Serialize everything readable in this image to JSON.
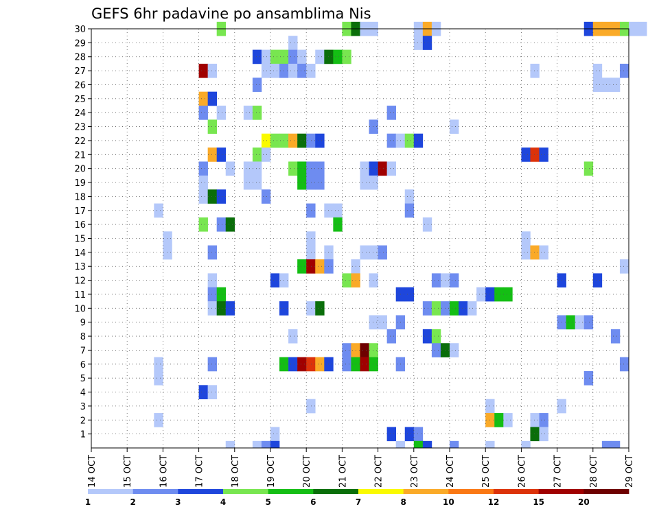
{
  "chart_data": {
    "type": "heatmap",
    "title": "GEFS 6hr padavine po ansamblima Nis",
    "x_tick_labels": [
      "14 OCT",
      "15 OCT",
      "16 OCT",
      "17 OCT",
      "18 OCT",
      "19 OCT",
      "20 OCT",
      "21 OCT",
      "22 OCT",
      "23 OCT",
      "24 OCT",
      "25 OCT",
      "26 OCT",
      "27 OCT",
      "28 OCT",
      "29 OCT"
    ],
    "y_tick_labels": [
      "1",
      "2",
      "3",
      "4",
      "5",
      "6",
      "7",
      "8",
      "9",
      "10",
      "11",
      "12",
      "13",
      "14",
      "15",
      "16",
      "17",
      "18",
      "19",
      "20",
      "21",
      "22",
      "23",
      "24",
      "25",
      "26",
      "27",
      "28",
      "29",
      "30"
    ],
    "ylim": [
      0,
      30
    ],
    "grid": true,
    "colorbar": {
      "labels": [
        "1",
        "2",
        "3",
        "4",
        "5",
        "6",
        "7",
        "8",
        "10",
        "12",
        "15",
        "20"
      ],
      "colors": [
        "#b4c8fa",
        "#6e8cf0",
        "#1e46dc",
        "#78e650",
        "#14be14",
        "#0a6e0a",
        "#fafa00",
        "#faaa28",
        "#fa7814",
        "#dc320a",
        "#a00000",
        "#6e0000"
      ]
    },
    "cells": [
      {
        "d": "17 OCT 12Z",
        "m": 30,
        "v": 4
      },
      {
        "d": "21 OCT 00Z",
        "m": 30,
        "v": 4
      },
      {
        "d": "21 OCT 06Z",
        "m": 30,
        "v": 6
      },
      {
        "d": "21 OCT 12Z",
        "m": 30,
        "v": 1
      },
      {
        "d": "21 OCT 18Z",
        "m": 30,
        "v": 1
      },
      {
        "d": "23 OCT 00Z",
        "m": 30,
        "v": 1
      },
      {
        "d": "23 OCT 06Z",
        "m": 30,
        "v": 8
      },
      {
        "d": "23 OCT 12Z",
        "m": 30,
        "v": 1
      },
      {
        "d": "27 OCT 18Z",
        "m": 30,
        "v": 3
      },
      {
        "d": "28 OCT 00Z",
        "m": 30,
        "v": 8
      },
      {
        "d": "28 OCT 06Z",
        "m": 30,
        "v": 8
      },
      {
        "d": "28 OCT 12Z",
        "m": 30,
        "v": 8
      },
      {
        "d": "28 OCT 18Z",
        "m": 30,
        "v": 4
      },
      {
        "d": "29 OCT 00Z",
        "m": 30,
        "v": 1
      },
      {
        "d": "29 OCT 06Z",
        "m": 30,
        "v": 1
      },
      {
        "d": "19 OCT 12Z",
        "m": 29,
        "v": 1
      },
      {
        "d": "23 OCT 00Z",
        "m": 29,
        "v": 1
      },
      {
        "d": "23 OCT 06Z",
        "m": 29,
        "v": 3
      },
      {
        "d": "18 OCT 12Z",
        "m": 28,
        "v": 3
      },
      {
        "d": "18 OCT 18Z",
        "m": 28,
        "v": 1
      },
      {
        "d": "19 OCT 00Z",
        "m": 28,
        "v": 4
      },
      {
        "d": "19 OCT 06Z",
        "m": 28,
        "v": 4
      },
      {
        "d": "19 OCT 12Z",
        "m": 28,
        "v": 2
      },
      {
        "d": "19 OCT 18Z",
        "m": 28,
        "v": 1
      },
      {
        "d": "20 OCT 06Z",
        "m": 28,
        "v": 1
      },
      {
        "d": "20 OCT 12Z",
        "m": 28,
        "v": 6
      },
      {
        "d": "20 OCT 18Z",
        "m": 28,
        "v": 5
      },
      {
        "d": "21 OCT 00Z",
        "m": 28,
        "v": 4
      },
      {
        "d": "17 OCT 00Z",
        "m": 27,
        "v": 15
      },
      {
        "d": "17 OCT 06Z",
        "m": 27,
        "v": 1
      },
      {
        "d": "18 OCT 18Z",
        "m": 27,
        "v": 1
      },
      {
        "d": "19 OCT 00Z",
        "m": 27,
        "v": 1
      },
      {
        "d": "19 OCT 06Z",
        "m": 27,
        "v": 2
      },
      {
        "d": "19 OCT 12Z",
        "m": 27,
        "v": 1
      },
      {
        "d": "19 OCT 18Z",
        "m": 27,
        "v": 2
      },
      {
        "d": "20 OCT 00Z",
        "m": 27,
        "v": 1
      },
      {
        "d": "26 OCT 06Z",
        "m": 27,
        "v": 1
      },
      {
        "d": "28 OCT 00Z",
        "m": 27,
        "v": 1
      },
      {
        "d": "28 OCT 18Z",
        "m": 27,
        "v": 2
      },
      {
        "d": "18 OCT 12Z",
        "m": 26,
        "v": 2
      },
      {
        "d": "28 OCT 00Z",
        "m": 26,
        "v": 1
      },
      {
        "d": "28 OCT 06Z",
        "m": 26,
        "v": 1
      },
      {
        "d": "28 OCT 12Z",
        "m": 26,
        "v": 1
      },
      {
        "d": "17 OCT 00Z",
        "m": 25,
        "v": 8
      },
      {
        "d": "17 OCT 06Z",
        "m": 25,
        "v": 3
      },
      {
        "d": "17 OCT 00Z",
        "m": 24,
        "v": 2
      },
      {
        "d": "17 OCT 12Z",
        "m": 24,
        "v": 1
      },
      {
        "d": "18 OCT 06Z",
        "m": 24,
        "v": 1
      },
      {
        "d": "18 OCT 12Z",
        "m": 24,
        "v": 4
      },
      {
        "d": "22 OCT 06Z",
        "m": 24,
        "v": 2
      },
      {
        "d": "17 OCT 06Z",
        "m": 23,
        "v": 4
      },
      {
        "d": "21 OCT 18Z",
        "m": 23,
        "v": 2
      },
      {
        "d": "24 OCT 00Z",
        "m": 23,
        "v": 1
      },
      {
        "d": "18 OCT 18Z",
        "m": 22,
        "v": 7
      },
      {
        "d": "19 OCT 00Z",
        "m": 22,
        "v": 4
      },
      {
        "d": "19 OCT 06Z",
        "m": 22,
        "v": 4
      },
      {
        "d": "19 OCT 12Z",
        "m": 22,
        "v": 8
      },
      {
        "d": "19 OCT 18Z",
        "m": 22,
        "v": 6
      },
      {
        "d": "20 OCT 00Z",
        "m": 22,
        "v": 2
      },
      {
        "d": "20 OCT 06Z",
        "m": 22,
        "v": 3
      },
      {
        "d": "22 OCT 06Z",
        "m": 22,
        "v": 2
      },
      {
        "d": "22 OCT 12Z",
        "m": 22,
        "v": 1
      },
      {
        "d": "22 OCT 18Z",
        "m": 22,
        "v": 4
      },
      {
        "d": "23 OCT 00Z",
        "m": 22,
        "v": 3
      },
      {
        "d": "17 OCT 06Z",
        "m": 21,
        "v": 8
      },
      {
        "d": "17 OCT 12Z",
        "m": 21,
        "v": 3
      },
      {
        "d": "18 OCT 12Z",
        "m": 21,
        "v": 4
      },
      {
        "d": "18 OCT 18Z",
        "m": 21,
        "v": 1
      },
      {
        "d": "26 OCT 00Z",
        "m": 21,
        "v": 3
      },
      {
        "d": "26 OCT 06Z",
        "m": 21,
        "v": 12
      },
      {
        "d": "26 OCT 12Z",
        "m": 21,
        "v": 3
      },
      {
        "d": "17 OCT 00Z",
        "m": 20,
        "v": 2
      },
      {
        "d": "17 OCT 18Z",
        "m": 20,
        "v": 1
      },
      {
        "d": "18 OCT 06Z",
        "m": 20,
        "v": 1
      },
      {
        "d": "18 OCT 12Z",
        "m": 20,
        "v": 1
      },
      {
        "d": "19 OCT 12Z",
        "m": 20,
        "v": 4
      },
      {
        "d": "19 OCT 18Z",
        "m": 20,
        "v": 5
      },
      {
        "d": "20 OCT 00Z",
        "m": 20,
        "v": 2
      },
      {
        "d": "20 OCT 06Z",
        "m": 20,
        "v": 2
      },
      {
        "d": "21 OCT 12Z",
        "m": 20,
        "v": 1
      },
      {
        "d": "21 OCT 18Z",
        "m": 20,
        "v": 3
      },
      {
        "d": "22 OCT 00Z",
        "m": 20,
        "v": 15
      },
      {
        "d": "22 OCT 06Z",
        "m": 20,
        "v": 1
      },
      {
        "d": "27 OCT 18Z",
        "m": 20,
        "v": 4
      },
      {
        "d": "17 OCT 00Z",
        "m": 19,
        "v": 1
      },
      {
        "d": "18 OCT 06Z",
        "m": 19,
        "v": 1
      },
      {
        "d": "18 OCT 12Z",
        "m": 19,
        "v": 1
      },
      {
        "d": "19 OCT 18Z",
        "m": 19,
        "v": 5
      },
      {
        "d": "20 OCT 00Z",
        "m": 19,
        "v": 2
      },
      {
        "d": "20 OCT 06Z",
        "m": 19,
        "v": 2
      },
      {
        "d": "21 OCT 12Z",
        "m": 19,
        "v": 1
      },
      {
        "d": "21 OCT 18Z",
        "m": 19,
        "v": 1
      },
      {
        "d": "17 OCT 00Z",
        "m": 18,
        "v": 1
      },
      {
        "d": "17 OCT 06Z",
        "m": 18,
        "v": 6
      },
      {
        "d": "17 OCT 12Z",
        "m": 18,
        "v": 3
      },
      {
        "d": "18 OCT 18Z",
        "m": 18,
        "v": 2
      },
      {
        "d": "22 OCT 18Z",
        "m": 18,
        "v": 1
      },
      {
        "d": "15 OCT 18Z",
        "m": 17,
        "v": 1
      },
      {
        "d": "20 OCT 00Z",
        "m": 17,
        "v": 2
      },
      {
        "d": "20 OCT 12Z",
        "m": 17,
        "v": 1
      },
      {
        "d": "20 OCT 18Z",
        "m": 17,
        "v": 1
      },
      {
        "d": "22 OCT 18Z",
        "m": 17,
        "v": 2
      },
      {
        "d": "17 OCT 00Z",
        "m": 16,
        "v": 4
      },
      {
        "d": "17 OCT 12Z",
        "m": 16,
        "v": 2
      },
      {
        "d": "17 OCT 18Z",
        "m": 16,
        "v": 6
      },
      {
        "d": "20 OCT 18Z",
        "m": 16,
        "v": 5
      },
      {
        "d": "23 OCT 06Z",
        "m": 16,
        "v": 1
      },
      {
        "d": "16 OCT 00Z",
        "m": 15,
        "v": 1
      },
      {
        "d": "20 OCT 00Z",
        "m": 15,
        "v": 1
      },
      {
        "d": "26 OCT 00Z",
        "m": 15,
        "v": 1
      },
      {
        "d": "16 OCT 00Z",
        "m": 14,
        "v": 1
      },
      {
        "d": "17 OCT 06Z",
        "m": 14,
        "v": 2
      },
      {
        "d": "20 OCT 00Z",
        "m": 14,
        "v": 1
      },
      {
        "d": "20 OCT 12Z",
        "m": 14,
        "v": 1
      },
      {
        "d": "21 OCT 12Z",
        "m": 14,
        "v": 1
      },
      {
        "d": "21 OCT 18Z",
        "m": 14,
        "v": 1
      },
      {
        "d": "22 OCT 00Z",
        "m": 14,
        "v": 2
      },
      {
        "d": "26 OCT 00Z",
        "m": 14,
        "v": 1
      },
      {
        "d": "26 OCT 06Z",
        "m": 14,
        "v": 8
      },
      {
        "d": "26 OCT 12Z",
        "m": 14,
        "v": 1
      },
      {
        "d": "19 OCT 18Z",
        "m": 13,
        "v": 5
      },
      {
        "d": "20 OCT 00Z",
        "m": 13,
        "v": 15
      },
      {
        "d": "20 OCT 06Z",
        "m": 13,
        "v": 8
      },
      {
        "d": "20 OCT 12Z",
        "m": 13,
        "v": 2
      },
      {
        "d": "21 OCT 06Z",
        "m": 13,
        "v": 1
      },
      {
        "d": "28 OCT 18Z",
        "m": 13,
        "v": 1
      },
      {
        "d": "17 OCT 06Z",
        "m": 12,
        "v": 1
      },
      {
        "d": "19 OCT 00Z",
        "m": 12,
        "v": 3
      },
      {
        "d": "19 OCT 06Z",
        "m": 12,
        "v": 1
      },
      {
        "d": "21 OCT 00Z",
        "m": 12,
        "v": 4
      },
      {
        "d": "21 OCT 06Z",
        "m": 12,
        "v": 8
      },
      {
        "d": "21 OCT 18Z",
        "m": 12,
        "v": 1
      },
      {
        "d": "23 OCT 12Z",
        "m": 12,
        "v": 2
      },
      {
        "d": "23 OCT 18Z",
        "m": 12,
        "v": 1
      },
      {
        "d": "24 OCT 00Z",
        "m": 12,
        "v": 2
      },
      {
        "d": "27 OCT 00Z",
        "m": 12,
        "v": 3
      },
      {
        "d": "28 OCT 00Z",
        "m": 12,
        "v": 3
      },
      {
        "d": "17 OCT 06Z",
        "m": 11,
        "v": 2
      },
      {
        "d": "17 OCT 12Z",
        "m": 11,
        "v": 5
      },
      {
        "d": "22 OCT 12Z",
        "m": 11,
        "v": 3
      },
      {
        "d": "22 OCT 18Z",
        "m": 11,
        "v": 3
      },
      {
        "d": "24 OCT 18Z",
        "m": 11,
        "v": 1
      },
      {
        "d": "25 OCT 00Z",
        "m": 11,
        "v": 3
      },
      {
        "d": "25 OCT 06Z",
        "m": 11,
        "v": 5
      },
      {
        "d": "25 OCT 12Z",
        "m": 11,
        "v": 5
      },
      {
        "d": "17 OCT 06Z",
        "m": 10,
        "v": 1
      },
      {
        "d": "17 OCT 12Z",
        "m": 10,
        "v": 6
      },
      {
        "d": "17 OCT 18Z",
        "m": 10,
        "v": 3
      },
      {
        "d": "19 OCT 06Z",
        "m": 10,
        "v": 3
      },
      {
        "d": "20 OCT 00Z",
        "m": 10,
        "v": 1
      },
      {
        "d": "20 OCT 06Z",
        "m": 10,
        "v": 6
      },
      {
        "d": "23 OCT 06Z",
        "m": 10,
        "v": 2
      },
      {
        "d": "23 OCT 12Z",
        "m": 10,
        "v": 4
      },
      {
        "d": "23 OCT 18Z",
        "m": 10,
        "v": 2
      },
      {
        "d": "24 OCT 00Z",
        "m": 10,
        "v": 5
      },
      {
        "d": "24 OCT 06Z",
        "m": 10,
        "v": 3
      },
      {
        "d": "24 OCT 12Z",
        "m": 10,
        "v": 1
      },
      {
        "d": "21 OCT 18Z",
        "m": 9,
        "v": 1
      },
      {
        "d": "22 OCT 00Z",
        "m": 9,
        "v": 1
      },
      {
        "d": "22 OCT 12Z",
        "m": 9,
        "v": 2
      },
      {
        "d": "27 OCT 00Z",
        "m": 9,
        "v": 2
      },
      {
        "d": "27 OCT 06Z",
        "m": 9,
        "v": 5
      },
      {
        "d": "27 OCT 12Z",
        "m": 9,
        "v": 1
      },
      {
        "d": "27 OCT 18Z",
        "m": 9,
        "v": 2
      },
      {
        "d": "19 OCT 12Z",
        "m": 8,
        "v": 1
      },
      {
        "d": "22 OCT 06Z",
        "m": 8,
        "v": 2
      },
      {
        "d": "23 OCT 06Z",
        "m": 8,
        "v": 3
      },
      {
        "d": "23 OCT 12Z",
        "m": 8,
        "v": 4
      },
      {
        "d": "28 OCT 12Z",
        "m": 8,
        "v": 2
      },
      {
        "d": "21 OCT 00Z",
        "m": 7,
        "v": 2
      },
      {
        "d": "21 OCT 06Z",
        "m": 7,
        "v": 8
      },
      {
        "d": "21 OCT 12Z",
        "m": 7,
        "v": 20
      },
      {
        "d": "21 OCT 18Z",
        "m": 7,
        "v": 4
      },
      {
        "d": "23 OCT 12Z",
        "m": 7,
        "v": 2
      },
      {
        "d": "23 OCT 18Z",
        "m": 7,
        "v": 6
      },
      {
        "d": "24 OCT 00Z",
        "m": 7,
        "v": 1
      },
      {
        "d": "15 OCT 18Z",
        "m": 6,
        "v": 1
      },
      {
        "d": "17 OCT 06Z",
        "m": 6,
        "v": 2
      },
      {
        "d": "19 OCT 06Z",
        "m": 6,
        "v": 5
      },
      {
        "d": "19 OCT 12Z",
        "m": 6,
        "v": 3
      },
      {
        "d": "19 OCT 18Z",
        "m": 6,
        "v": 15
      },
      {
        "d": "20 OCT 00Z",
        "m": 6,
        "v": 12
      },
      {
        "d": "20 OCT 06Z",
        "m": 6,
        "v": 8
      },
      {
        "d": "20 OCT 12Z",
        "m": 6,
        "v": 3
      },
      {
        "d": "21 OCT 00Z",
        "m": 6,
        "v": 2
      },
      {
        "d": "21 OCT 06Z",
        "m": 6,
        "v": 5
      },
      {
        "d": "21 OCT 12Z",
        "m": 6,
        "v": 15
      },
      {
        "d": "21 OCT 18Z",
        "m": 6,
        "v": 5
      },
      {
        "d": "22 OCT 12Z",
        "m": 6,
        "v": 2
      },
      {
        "d": "28 OCT 18Z",
        "m": 6,
        "v": 2
      },
      {
        "d": "15 OCT 18Z",
        "m": 5,
        "v": 1
      },
      {
        "d": "27 OCT 18Z",
        "m": 5,
        "v": 2
      },
      {
        "d": "17 OCT 00Z",
        "m": 4,
        "v": 3
      },
      {
        "d": "17 OCT 06Z",
        "m": 4,
        "v": 1
      },
      {
        "d": "20 OCT 00Z",
        "m": 3,
        "v": 1
      },
      {
        "d": "25 OCT 00Z",
        "m": 3,
        "v": 1
      },
      {
        "d": "27 OCT 00Z",
        "m": 3,
        "v": 1
      },
      {
        "d": "15 OCT 18Z",
        "m": 2,
        "v": 1
      },
      {
        "d": "25 OCT 00Z",
        "m": 2,
        "v": 8
      },
      {
        "d": "25 OCT 06Z",
        "m": 2,
        "v": 5
      },
      {
        "d": "25 OCT 12Z",
        "m": 2,
        "v": 1
      },
      {
        "d": "26 OCT 06Z",
        "m": 2,
        "v": 1
      },
      {
        "d": "26 OCT 12Z",
        "m": 2,
        "v": 2
      },
      {
        "d": "19 OCT 00Z",
        "m": 1,
        "v": 1
      },
      {
        "d": "22 OCT 06Z",
        "m": 1,
        "v": 3
      },
      {
        "d": "22 OCT 18Z",
        "m": 1,
        "v": 3
      },
      {
        "d": "23 OCT 00Z",
        "m": 1,
        "v": 2
      },
      {
        "d": "26 OCT 06Z",
        "m": 1,
        "v": 6
      },
      {
        "d": "26 OCT 12Z",
        "m": 1,
        "v": 1
      },
      {
        "d": "17 OCT 18Z",
        "m": 0,
        "v": 1
      },
      {
        "d": "18 OCT 12Z",
        "m": 0,
        "v": 1
      },
      {
        "d": "18 OCT 18Z",
        "m": 0,
        "v": 2
      },
      {
        "d": "19 OCT 00Z",
        "m": 0,
        "v": 3
      },
      {
        "d": "22 OCT 12Z",
        "m": 0,
        "v": 1
      },
      {
        "d": "23 OCT 00Z",
        "m": 0,
        "v": 5
      },
      {
        "d": "23 OCT 06Z",
        "m": 0,
        "v": 3
      },
      {
        "d": "24 OCT 00Z",
        "m": 0,
        "v": 2
      },
      {
        "d": "25 OCT 00Z",
        "m": 0,
        "v": 1
      },
      {
        "d": "26 OCT 00Z",
        "m": 0,
        "v": 1
      },
      {
        "d": "28 OCT 06Z",
        "m": 0,
        "v": 2
      },
      {
        "d": "28 OCT 12Z",
        "m": 0,
        "v": 2
      }
    ]
  }
}
